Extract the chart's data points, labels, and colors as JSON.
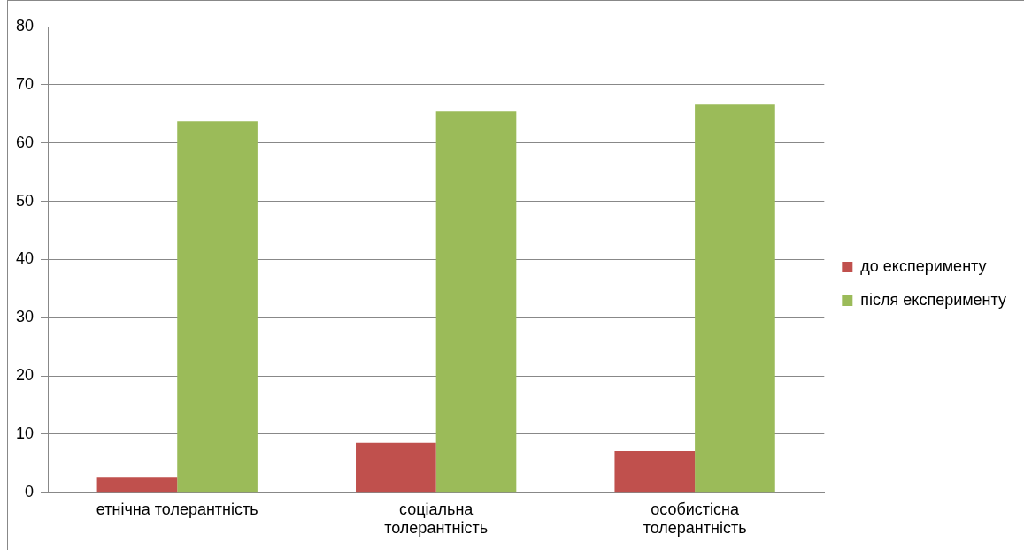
{
  "chart_data": {
    "type": "bar",
    "categories": [
      "етнічна толерантність",
      "соціальна толерантність",
      "особистісна толерантність"
    ],
    "series": [
      {
        "name": "до експерименту",
        "color": "#c0504d",
        "values": [
          2.5,
          8.5,
          7.1
        ]
      },
      {
        "name": "після експерименту",
        "color": "#9bbb59",
        "values": [
          63.7,
          65.4,
          66.6
        ]
      }
    ],
    "ylim": [
      0,
      80
    ],
    "yticks": [
      0,
      10,
      20,
      30,
      40,
      50,
      60,
      70,
      80
    ],
    "grid": "y",
    "legend": "right"
  }
}
